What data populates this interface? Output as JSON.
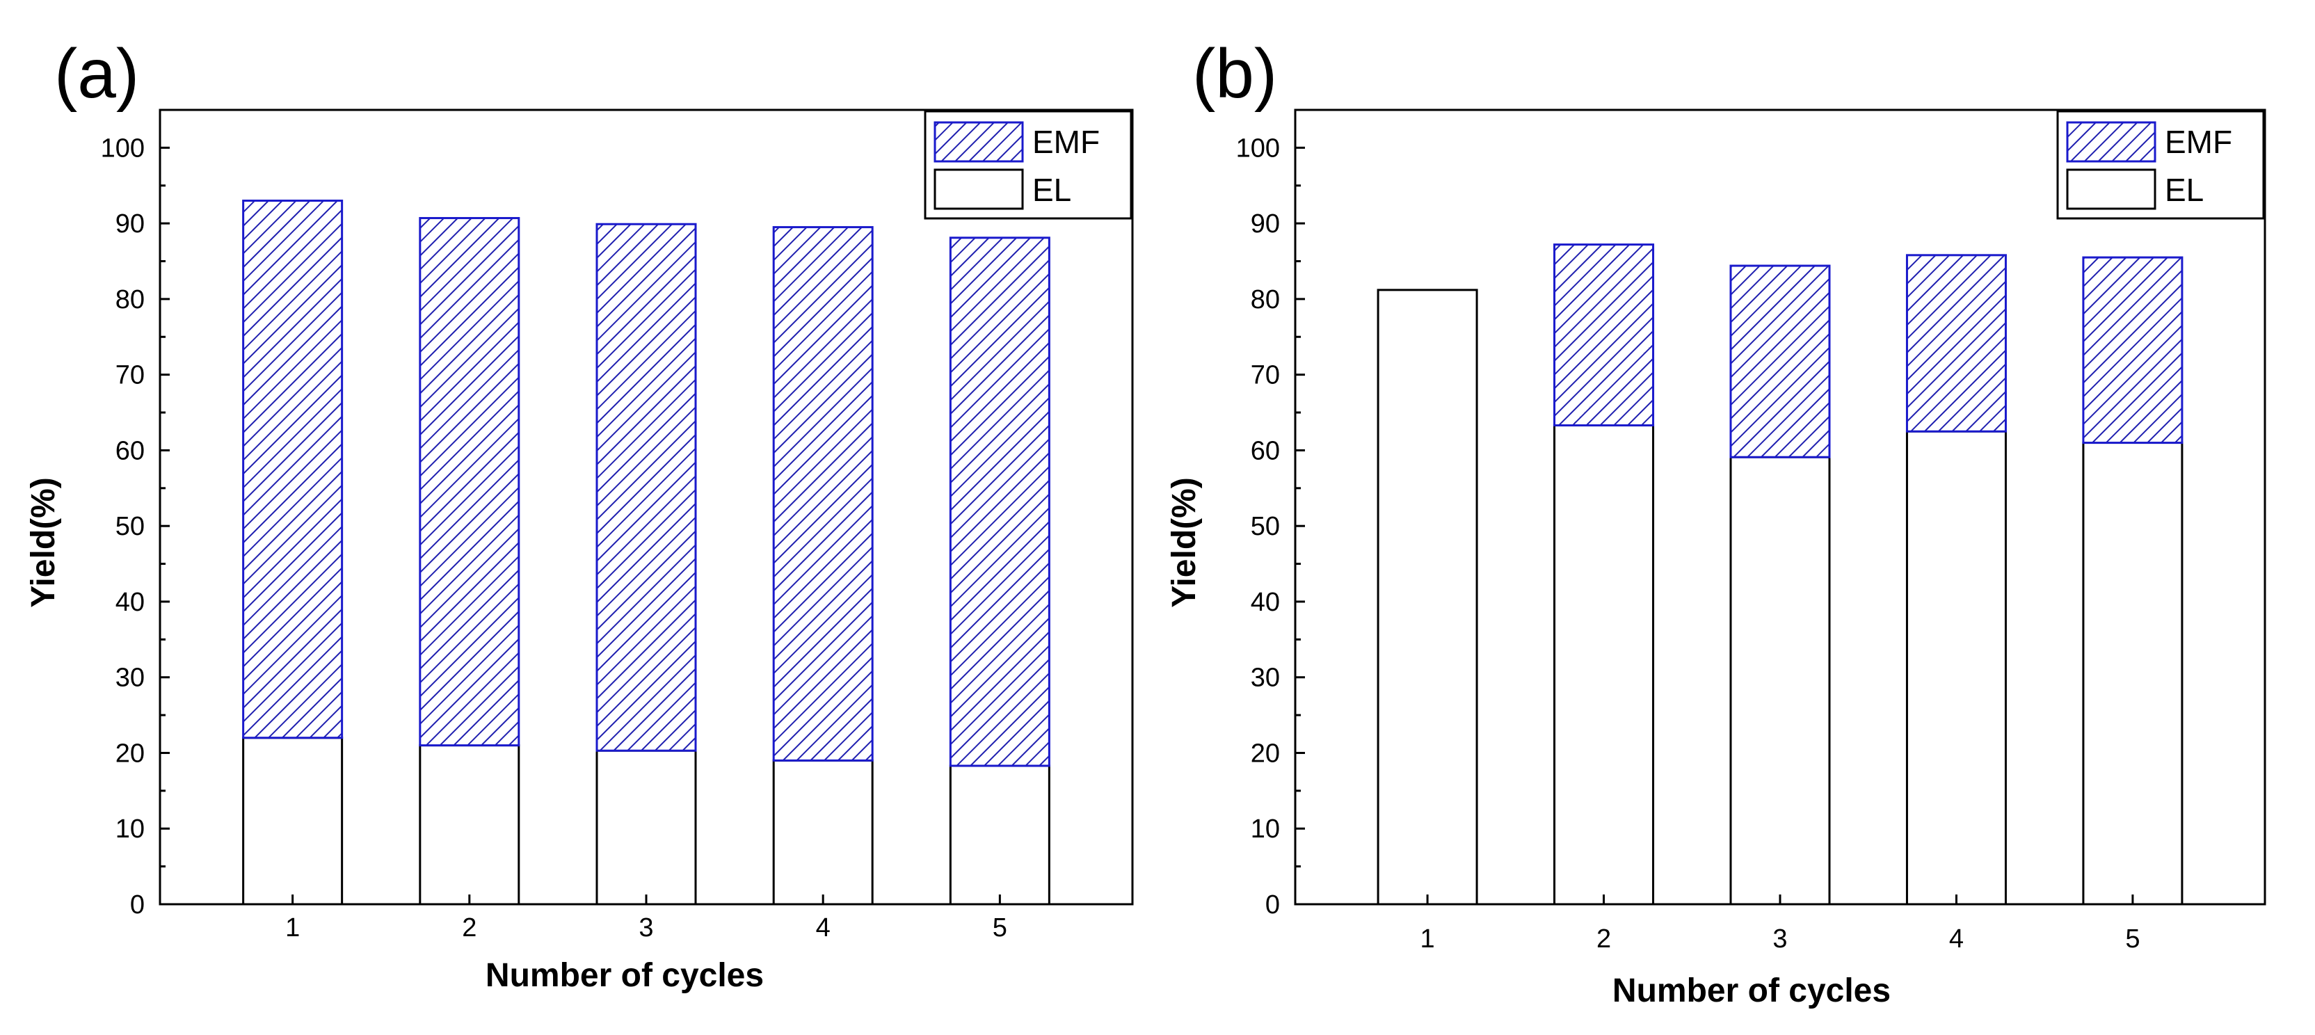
{
  "chart_data": [
    {
      "type": "bar",
      "stacked": true,
      "panel_label": "(a)",
      "categories": [
        "1",
        "2",
        "3",
        "4",
        "5"
      ],
      "series": [
        {
          "name": "EL",
          "pattern": "none",
          "values": [
            22.0,
            21.0,
            20.3,
            19.0,
            18.3
          ]
        },
        {
          "name": "EMF",
          "pattern": "hatched",
          "values": [
            71.0,
            69.7,
            69.6,
            70.5,
            69.8
          ]
        }
      ],
      "totals": [
        93.0,
        90.7,
        89.9,
        89.5,
        88.1
      ],
      "xlabel": "Number of cycles",
      "ylabel": "Yield(%)",
      "ylim": [
        0,
        105
      ],
      "yticks": [
        "0",
        "10",
        "20",
        "30",
        "40",
        "50",
        "60",
        "70",
        "80",
        "90",
        "100"
      ],
      "legend": {
        "position": "top-right",
        "entries": [
          "EMF",
          "EL"
        ]
      }
    },
    {
      "type": "bar",
      "stacked": true,
      "panel_label": "(b)",
      "categories": [
        "1",
        "2",
        "3",
        "4",
        "5"
      ],
      "series": [
        {
          "name": "EL",
          "pattern": "none",
          "values": [
            81.2,
            63.3,
            59.1,
            62.5,
            61.0
          ]
        },
        {
          "name": "EMF",
          "pattern": "hatched",
          "values": [
            0,
            23.9,
            25.3,
            23.3,
            24.5
          ]
        }
      ],
      "totals": [
        81.2,
        87.2,
        84.4,
        85.8,
        85.5
      ],
      "xlabel": "Number of cycles",
      "ylabel": "Yield(%)",
      "ylim": [
        0,
        105
      ],
      "yticks": [
        "0",
        "10",
        "20",
        "30",
        "40",
        "50",
        "60",
        "70",
        "80",
        "90",
        "100"
      ],
      "legend": {
        "position": "top-right",
        "entries": [
          "EMF",
          "EL"
        ]
      }
    }
  ],
  "colors": {
    "axis": "#000000",
    "el_fill": "#ffffff",
    "el_stroke": "#000000",
    "emf_stroke": "#1a1acc",
    "emf_hatch": "#2020b0"
  }
}
